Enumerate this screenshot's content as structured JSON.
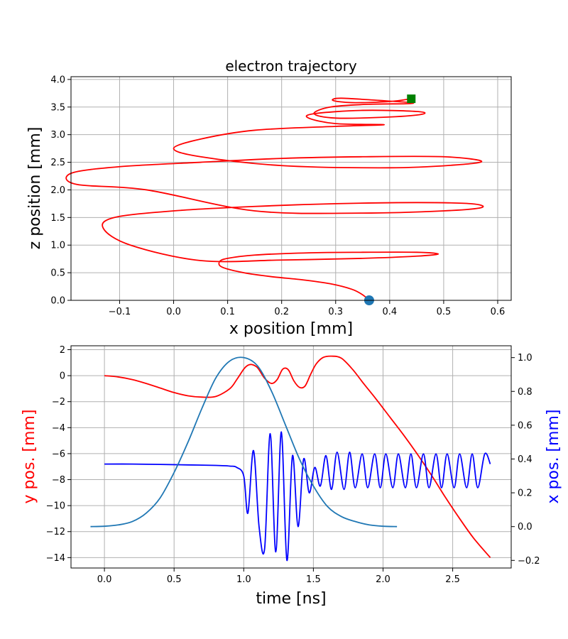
{
  "chart_data": [
    {
      "type": "line",
      "title": "electron trajectory",
      "xlabel": "x position [mm]",
      "ylabel": "z position [mm]",
      "xlim": [
        -0.19,
        0.625
      ],
      "ylim": [
        0.0,
        4.05
      ],
      "grid": true,
      "xticks": [
        "−0.1",
        "0.0",
        "0.1",
        "0.2",
        "0.3",
        "0.4",
        "0.5",
        "0.6"
      ],
      "yticks": [
        "0.0",
        "0.5",
        "1.0",
        "1.5",
        "2.0",
        "2.5",
        "3.0",
        "3.5",
        "4.0"
      ],
      "series": [
        {
          "color": "#ff0000",
          "x": [
            0.362,
            0.35,
            0.33,
            0.29,
            0.24,
            0.18,
            0.13,
            0.09,
            0.085,
            0.1,
            0.15,
            0.25,
            0.35,
            0.45,
            0.49,
            0.45,
            0.35,
            0.2,
            0.05,
            -0.08,
            -0.13,
            -0.11,
            0.0,
            0.15,
            0.3,
            0.45,
            0.55,
            0.57,
            0.5,
            0.35,
            0.15,
            -0.05,
            -0.18,
            -0.19,
            -0.1,
            0.05,
            0.2,
            0.35,
            0.5,
            0.57,
            0.52,
            0.4,
            0.2,
            0.05,
            0.0,
            0.05,
            0.15,
            0.3,
            0.39,
            0.3,
            0.25,
            0.26,
            0.35,
            0.45,
            0.46,
            0.4,
            0.3,
            0.26,
            0.29,
            0.36,
            0.43,
            0.44,
            0.38,
            0.31,
            0.295,
            0.33,
            0.4,
            0.44
          ],
          "y": [
            0.0,
            0.1,
            0.2,
            0.3,
            0.37,
            0.43,
            0.5,
            0.6,
            0.7,
            0.76,
            0.82,
            0.86,
            0.87,
            0.87,
            0.84,
            0.8,
            0.76,
            0.73,
            0.72,
            1.0,
            1.3,
            1.5,
            1.62,
            1.7,
            1.75,
            1.77,
            1.75,
            1.68,
            1.62,
            1.58,
            1.62,
            2.0,
            2.1,
            2.3,
            2.42,
            2.5,
            2.57,
            2.6,
            2.6,
            2.52,
            2.45,
            2.4,
            2.44,
            2.6,
            2.75,
            2.92,
            3.08,
            3.15,
            3.18,
            3.2,
            3.3,
            3.38,
            3.44,
            3.42,
            3.37,
            3.32,
            3.3,
            3.38,
            3.5,
            3.55,
            3.56,
            3.58,
            3.62,
            3.66,
            3.62,
            3.58,
            3.6,
            3.65
          ]
        }
      ],
      "markers": [
        {
          "shape": "circle",
          "x": 0.362,
          "y": 0.0,
          "color": "#1f77b4"
        },
        {
          "shape": "square",
          "x": 0.44,
          "y": 3.65,
          "color": "#008000"
        }
      ]
    },
    {
      "type": "line",
      "xlabel": "time [ns]",
      "ylabel": "y pos. [mm]",
      "ylabel_right": "x pos. [mm]",
      "xlim": [
        -0.24,
        2.92
      ],
      "ylim": [
        -14.8,
        2.3
      ],
      "ylim_right": [
        -0.245,
        1.07
      ],
      "grid": true,
      "xticks": [
        "0.0",
        "0.5",
        "1.0",
        "1.5",
        "2.0",
        "2.5"
      ],
      "yticks": [
        "2",
        "0",
        "−2",
        "−4",
        "−6",
        "−8",
        "−10",
        "−12",
        "−14"
      ],
      "yticks_right": [
        "1.0",
        "0.8",
        "0.6",
        "0.4",
        "0.2",
        "0.0",
        "−0.2"
      ],
      "series": [
        {
          "color": "#ff0000",
          "axis": "left",
          "x": [
            0.0,
            0.1,
            0.2,
            0.3,
            0.4,
            0.5,
            0.6,
            0.7,
            0.8,
            0.9,
            0.95,
            1.0,
            1.03,
            1.06,
            1.1,
            1.15,
            1.2,
            1.24,
            1.28,
            1.32,
            1.36,
            1.4,
            1.44,
            1.48,
            1.52,
            1.57,
            1.63,
            1.7,
            1.78,
            1.86,
            1.95,
            2.05,
            2.15,
            2.25,
            2.35,
            2.45,
            2.55,
            2.65,
            2.77
          ],
          "y": [
            0.0,
            -0.1,
            -0.3,
            -0.6,
            -0.95,
            -1.3,
            -1.55,
            -1.65,
            -1.6,
            -1.0,
            -0.3,
            0.5,
            0.8,
            0.85,
            0.6,
            -0.2,
            -0.6,
            -0.3,
            0.5,
            0.45,
            -0.4,
            -0.9,
            -0.8,
            0.1,
            0.9,
            1.4,
            1.5,
            1.35,
            0.5,
            -0.6,
            -1.8,
            -3.2,
            -4.6,
            -6.1,
            -7.7,
            -9.4,
            -11.0,
            -12.5,
            -14.0
          ]
        },
        {
          "color": "#0000ff",
          "axis": "right",
          "x": [
            0.0,
            0.2,
            0.4,
            0.6,
            0.8,
            0.9,
            0.95,
            1.0,
            1.03,
            1.07,
            1.11,
            1.15,
            1.19,
            1.23,
            1.27,
            1.31,
            1.35,
            1.39,
            1.43,
            1.47,
            1.51,
            1.55,
            1.59,
            1.63,
            1.67,
            1.72,
            1.76,
            1.8,
            1.85,
            1.89,
            1.94,
            1.98,
            2.02,
            2.07,
            2.11,
            2.16,
            2.2,
            2.24,
            2.29,
            2.33,
            2.38,
            2.42,
            2.46,
            2.51,
            2.55,
            2.6,
            2.64,
            2.68,
            2.73,
            2.77
          ],
          "y": [
            0.37,
            0.37,
            0.368,
            0.365,
            0.362,
            0.358,
            0.35,
            0.3,
            0.08,
            0.45,
            0.0,
            -0.13,
            0.55,
            -0.15,
            0.56,
            -0.2,
            0.42,
            0.0,
            0.4,
            0.2,
            0.35,
            0.24,
            0.42,
            0.22,
            0.44,
            0.22,
            0.44,
            0.23,
            0.43,
            0.23,
            0.43,
            0.23,
            0.43,
            0.23,
            0.43,
            0.23,
            0.43,
            0.23,
            0.43,
            0.23,
            0.43,
            0.23,
            0.43,
            0.23,
            0.43,
            0.23,
            0.43,
            0.23,
            0.43,
            0.37
          ]
        },
        {
          "color": "#1f77b4",
          "axis": "right",
          "x": [
            -0.1,
            0.0,
            0.1,
            0.2,
            0.3,
            0.4,
            0.5,
            0.6,
            0.7,
            0.8,
            0.9,
            1.0,
            1.1,
            1.2,
            1.3,
            1.4,
            1.5,
            1.6,
            1.7,
            1.8,
            1.9,
            2.0,
            2.1
          ],
          "y": [
            0.0,
            0.002,
            0.01,
            0.03,
            0.08,
            0.17,
            0.32,
            0.5,
            0.7,
            0.88,
            0.98,
            1.0,
            0.95,
            0.8,
            0.6,
            0.4,
            0.24,
            0.12,
            0.06,
            0.03,
            0.01,
            0.002,
            0.0
          ]
        }
      ]
    }
  ]
}
